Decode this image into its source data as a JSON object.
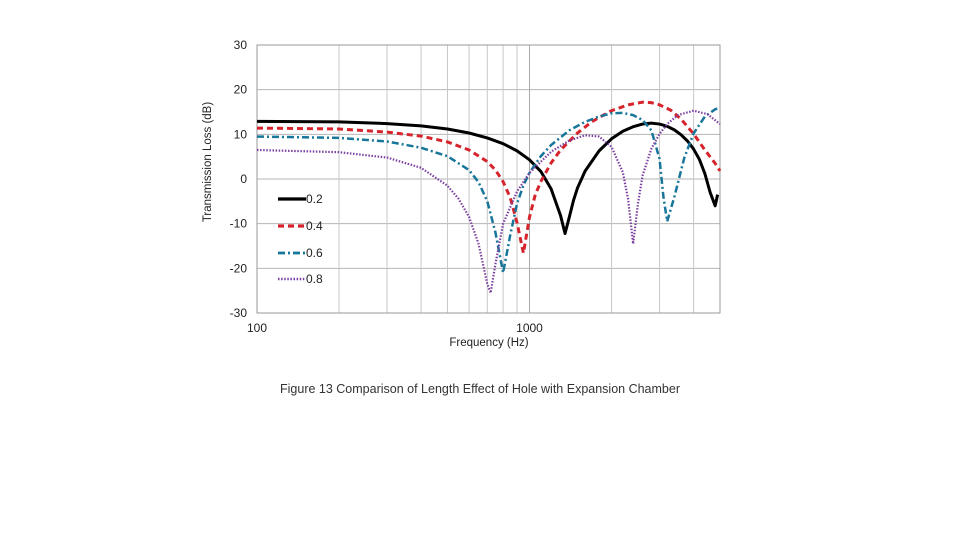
{
  "caption": "Figure 13  Comparison of Length Effect of Hole with Expansion Chamber",
  "chart_data": {
    "type": "line",
    "xlabel": "Frequency (Hz)",
    "ylabel": "Transmission Loss (dB)",
    "xscale": "log",
    "xlim": [
      100,
      5000
    ],
    "ylim": [
      -30,
      30
    ],
    "xticks": [
      100,
      1000
    ],
    "xtick_labels": [
      "100",
      "1000"
    ],
    "yticks": [
      -30,
      -20,
      -10,
      0,
      10,
      20,
      30
    ],
    "ytick_labels": [
      "-30",
      "-20",
      "-10",
      "0",
      "10",
      "20",
      "30"
    ],
    "grid": true,
    "legend_position": "lower-left",
    "series": [
      {
        "name": "0.2",
        "color": "#000000",
        "style": "solid",
        "x": [
          100,
          200,
          300,
          400,
          500,
          600,
          700,
          800,
          900,
          1000,
          1100,
          1200,
          1300,
          1350,
          1400,
          1450,
          1500,
          1600,
          1800,
          2000,
          2200,
          2400,
          2600,
          2800,
          3000,
          3200,
          3400,
          3600,
          3800,
          4000,
          4200,
          4400,
          4600,
          4800,
          4900
        ],
        "y": [
          12.9,
          12.8,
          12.4,
          11.9,
          11.2,
          10.3,
          9.2,
          7.9,
          6.3,
          4.3,
          1.7,
          -2.2,
          -8.2,
          -12.2,
          -8.5,
          -4.8,
          -2.0,
          1.8,
          6.3,
          9.0,
          10.7,
          11.7,
          12.3,
          12.5,
          12.3,
          11.8,
          11.0,
          9.9,
          8.5,
          6.7,
          4.4,
          1.2,
          -3.0,
          -6.0,
          -3.5
        ]
      },
      {
        "name": "0.4",
        "color": "#d6242c",
        "style": "dashed",
        "x": [
          100,
          200,
          300,
          400,
          500,
          600,
          700,
          750,
          800,
          850,
          900,
          950,
          1000,
          1050,
          1100,
          1200,
          1300,
          1500,
          1700,
          2000,
          2300,
          2600,
          2800,
          3000,
          3300,
          3600,
          4000,
          4400,
          4800,
          5000
        ],
        "y": [
          11.4,
          11.2,
          10.5,
          9.6,
          8.3,
          6.5,
          3.9,
          2.0,
          -0.6,
          -4.2,
          -9.8,
          -16.6,
          -8.5,
          -3.5,
          -0.6,
          3.6,
          6.5,
          10.3,
          12.9,
          15.3,
          16.6,
          17.2,
          17.1,
          16.6,
          15.4,
          13.4,
          10.1,
          6.5,
          3.5,
          1.8
        ]
      },
      {
        "name": "0.6",
        "color": "#17769a",
        "style": "dash-dot",
        "x": [
          100,
          200,
          300,
          400,
          500,
          600,
          650,
          700,
          750,
          800,
          850,
          900,
          950,
          1000,
          1100,
          1200,
          1400,
          1600,
          1800,
          2000,
          2200,
          2400,
          2600,
          2800,
          3000,
          3100,
          3200,
          3400,
          3700,
          4000,
          4400,
          4800,
          5000
        ],
        "y": [
          9.5,
          9.2,
          8.4,
          7.0,
          5.1,
          2.0,
          -0.7,
          -5.0,
          -12.0,
          -21.0,
          -12.5,
          -5.5,
          -1.4,
          1.4,
          5.1,
          7.6,
          10.9,
          12.8,
          14.0,
          14.7,
          14.8,
          14.3,
          13.2,
          10.9,
          4.5,
          -4.0,
          -9.5,
          -4.0,
          4.8,
          10.2,
          14.0,
          15.6,
          16.0
        ]
      },
      {
        "name": "0.8",
        "color": "#7b3fa0",
        "style": "dotted",
        "x": [
          100,
          200,
          300,
          400,
          500,
          550,
          600,
          650,
          700,
          720,
          750,
          800,
          900,
          1000,
          1200,
          1400,
          1600,
          1800,
          2000,
          2200,
          2300,
          2400,
          2500,
          2600,
          2800,
          3000,
          3200,
          3500,
          4000,
          4500,
          5000
        ],
        "y": [
          6.5,
          6.0,
          4.8,
          2.5,
          -1.5,
          -4.5,
          -8.5,
          -14.5,
          -23.5,
          -25.5,
          -19.0,
          -10.0,
          -2.8,
          1.4,
          6.1,
          8.6,
          9.8,
          9.5,
          7.2,
          1.5,
          -4.5,
          -14.5,
          -5.5,
          0.8,
          6.8,
          10.1,
          12.3,
          14.3,
          15.3,
          14.5,
          12.3
        ]
      }
    ]
  }
}
